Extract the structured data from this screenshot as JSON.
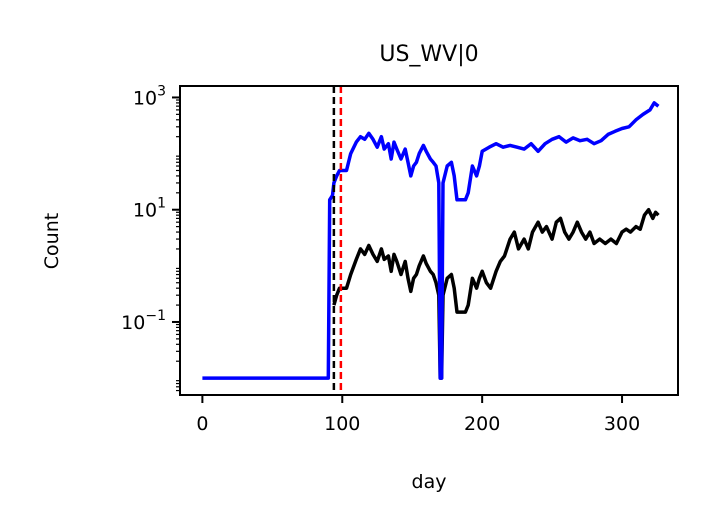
{
  "chart_data": {
    "type": "line",
    "title": "US_WV|0",
    "xlabel": "day",
    "ylabel": "Count",
    "xlim": [
      -16,
      340
    ],
    "ylim": [
      0.005,
      1600
    ],
    "yscale": "log",
    "grid": false,
    "legend": "none",
    "x_ticks": [
      0,
      100,
      200,
      300
    ],
    "y_ticks": [
      {
        "value": 0.1,
        "base": "10",
        "exp": "−1"
      },
      {
        "value": 10,
        "base": "10",
        "exp": "1"
      },
      {
        "value": 1000,
        "base": "10",
        "exp": "3"
      }
    ],
    "vlines": [
      {
        "x": 94,
        "color": "#000000",
        "style": "dashed"
      },
      {
        "x": 99,
        "color": "#ff0000",
        "style": "dashed"
      }
    ],
    "series": [
      {
        "color": "#0000ff",
        "points": [
          [
            0,
            0.01
          ],
          [
            86,
            0.01
          ],
          [
            90,
            0.01
          ],
          [
            91,
            15
          ],
          [
            93,
            18
          ],
          [
            94,
            30
          ],
          [
            96,
            40
          ],
          [
            98,
            50
          ],
          [
            100,
            50
          ],
          [
            103,
            50
          ],
          [
            106,
            100
          ],
          [
            110,
            160
          ],
          [
            113,
            200
          ],
          [
            116,
            180
          ],
          [
            119,
            230
          ],
          [
            122,
            180
          ],
          [
            125,
            130
          ],
          [
            128,
            200
          ],
          [
            130,
            120
          ],
          [
            133,
            150
          ],
          [
            135,
            80
          ],
          [
            137,
            160
          ],
          [
            139,
            120
          ],
          [
            142,
            80
          ],
          [
            145,
            120
          ],
          [
            147,
            70
          ],
          [
            149,
            40
          ],
          [
            151,
            60
          ],
          [
            153,
            70
          ],
          [
            155,
            100
          ],
          [
            158,
            140
          ],
          [
            160,
            110
          ],
          [
            163,
            80
          ],
          [
            165,
            70
          ],
          [
            167,
            60
          ],
          [
            169,
            30
          ],
          [
            170,
            0.01
          ],
          [
            171,
            0.01
          ],
          [
            172,
            30
          ],
          [
            175,
            60
          ],
          [
            178,
            70
          ],
          [
            180,
            40
          ],
          [
            182,
            15
          ],
          [
            186,
            15
          ],
          [
            188,
            15
          ],
          [
            190,
            20
          ],
          [
            193,
            60
          ],
          [
            196,
            40
          ],
          [
            198,
            60
          ],
          [
            200,
            110
          ],
          [
            205,
            130
          ],
          [
            210,
            150
          ],
          [
            215,
            130
          ],
          [
            220,
            140
          ],
          [
            225,
            130
          ],
          [
            230,
            120
          ],
          [
            235,
            150
          ],
          [
            240,
            110
          ],
          [
            245,
            150
          ],
          [
            250,
            180
          ],
          [
            255,
            200
          ],
          [
            260,
            160
          ],
          [
            265,
            190
          ],
          [
            270,
            170
          ],
          [
            275,
            180
          ],
          [
            280,
            150
          ],
          [
            285,
            170
          ],
          [
            290,
            220
          ],
          [
            295,
            250
          ],
          [
            300,
            280
          ],
          [
            305,
            300
          ],
          [
            310,
            400
          ],
          [
            315,
            500
          ],
          [
            320,
            600
          ],
          [
            323,
            800
          ],
          [
            326,
            700
          ]
        ]
      },
      {
        "color": "#000000",
        "points": [
          [
            94,
            0.2
          ],
          [
            96,
            0.3
          ],
          [
            98,
            0.4
          ],
          [
            100,
            0.4
          ],
          [
            103,
            0.4
          ],
          [
            106,
            0.7
          ],
          [
            110,
            1.3
          ],
          [
            113,
            2
          ],
          [
            116,
            1.6
          ],
          [
            119,
            2.3
          ],
          [
            122,
            1.6
          ],
          [
            125,
            1.2
          ],
          [
            128,
            2
          ],
          [
            130,
            1.3
          ],
          [
            133,
            1.5
          ],
          [
            135,
            0.8
          ],
          [
            137,
            1.6
          ],
          [
            139,
            1.2
          ],
          [
            142,
            0.7
          ],
          [
            145,
            1.2
          ],
          [
            147,
            0.6
          ],
          [
            149,
            0.35
          ],
          [
            151,
            0.6
          ],
          [
            153,
            0.7
          ],
          [
            155,
            1
          ],
          [
            158,
            1.5
          ],
          [
            160,
            1.1
          ],
          [
            163,
            0.8
          ],
          [
            165,
            0.7
          ],
          [
            167,
            0.5
          ],
          [
            169,
            0.3
          ],
          [
            170,
            0.01
          ],
          [
            171,
            0.01
          ],
          [
            172,
            0.3
          ],
          [
            175,
            0.6
          ],
          [
            178,
            0.7
          ],
          [
            180,
            0.4
          ],
          [
            182,
            0.15
          ],
          [
            186,
            0.15
          ],
          [
            188,
            0.15
          ],
          [
            190,
            0.2
          ],
          [
            193,
            0.6
          ],
          [
            196,
            0.4
          ],
          [
            198,
            0.6
          ],
          [
            200,
            0.8
          ],
          [
            203,
            0.5
          ],
          [
            206,
            0.4
          ],
          [
            210,
            0.8
          ],
          [
            213,
            1.2
          ],
          [
            216,
            1.5
          ],
          [
            220,
            3
          ],
          [
            223,
            4
          ],
          [
            226,
            2
          ],
          [
            230,
            3
          ],
          [
            233,
            2
          ],
          [
            236,
            4
          ],
          [
            240,
            6
          ],
          [
            243,
            4
          ],
          [
            246,
            5
          ],
          [
            250,
            3
          ],
          [
            253,
            6
          ],
          [
            256,
            7
          ],
          [
            259,
            4
          ],
          [
            262,
            3
          ],
          [
            265,
            4
          ],
          [
            268,
            6
          ],
          [
            271,
            4
          ],
          [
            274,
            3
          ],
          [
            277,
            4
          ],
          [
            280,
            2.5
          ],
          [
            284,
            3
          ],
          [
            288,
            2.5
          ],
          [
            292,
            3
          ],
          [
            296,
            2.5
          ],
          [
            300,
            4
          ],
          [
            303,
            4.5
          ],
          [
            306,
            4
          ],
          [
            310,
            5
          ],
          [
            313,
            4.5
          ],
          [
            316,
            8
          ],
          [
            319,
            10
          ],
          [
            322,
            7
          ],
          [
            324,
            9
          ],
          [
            326,
            8
          ]
        ]
      }
    ]
  }
}
